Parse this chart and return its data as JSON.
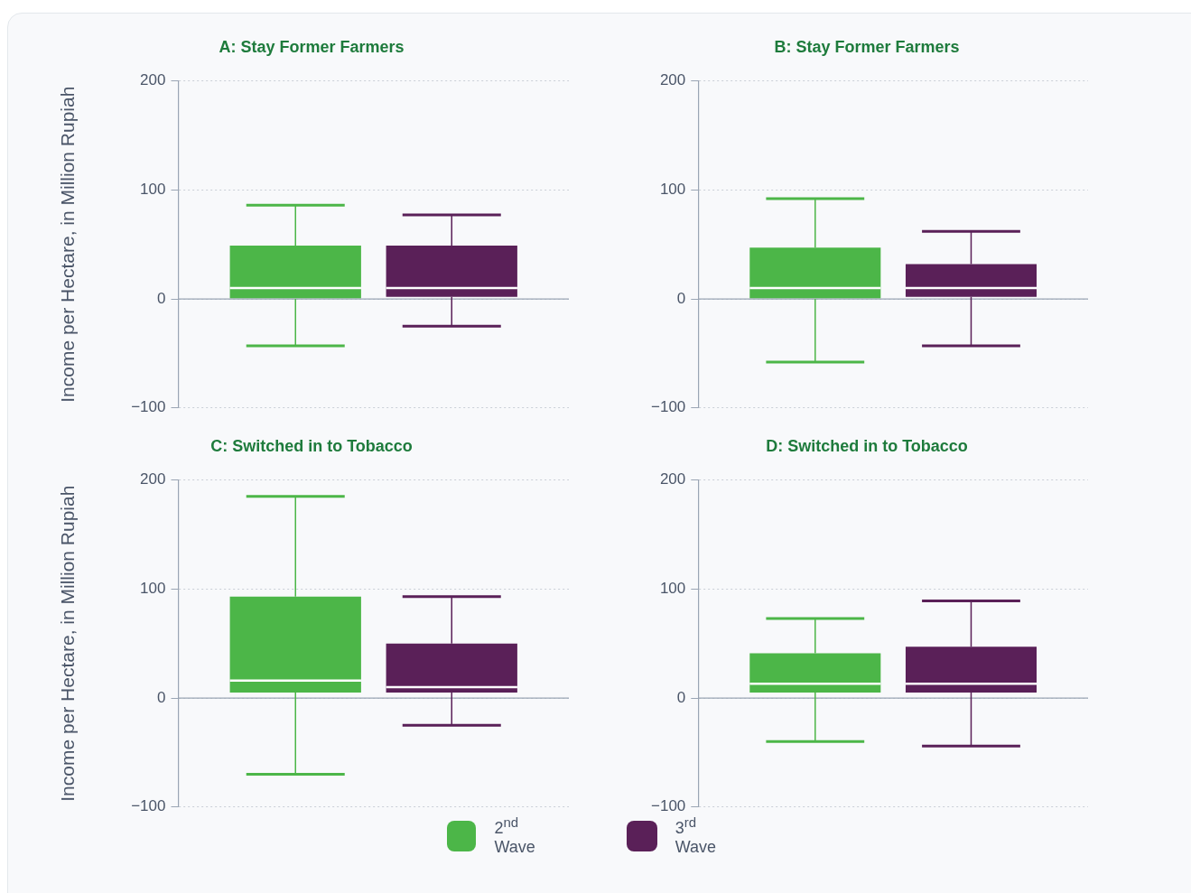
{
  "chart_data": [
    {
      "type": "box",
      "title": "A: Stay Former Farmers",
      "ylabel": "Income per Hectare, in Million Rupiah",
      "categories": [
        null
      ],
      "ylim": [
        -100,
        200
      ],
      "yticks": [
        -100,
        0,
        100,
        200
      ],
      "grid": "y",
      "tick_labels": "y",
      "legend": false,
      "series": [
        {
          "color": "#4cb648",
          "boxes": [
            {
              "low": -43,
              "q1": 0,
              "median": 10,
              "q3": 49,
              "high": 86
            }
          ]
        },
        {
          "color": "#5a2058",
          "boxes": [
            {
              "low": -25,
              "q1": 2,
              "median": 10,
              "q3": 49,
              "high": 77
            }
          ]
        }
      ]
    },
    {
      "type": "box",
      "title": "B: Stay Former Farmers",
      "categories": [
        null
      ],
      "ylim": [
        -100,
        200
      ],
      "yticks": [
        -100,
        0,
        100,
        200
      ],
      "grid": "y",
      "tick_labels": "y",
      "legend": false,
      "series": [
        {
          "color": "#4cb648",
          "boxes": [
            {
              "low": -58,
              "q1": 0,
              "median": 10,
              "q3": 47,
              "high": 92
            }
          ]
        },
        {
          "color": "#5a2058",
          "boxes": [
            {
              "low": -43,
              "q1": 2,
              "median": 10,
              "q3": 32,
              "high": 62
            }
          ]
        }
      ]
    },
    {
      "type": "box",
      "title": "C: Switched in to Tobacco",
      "ylabel": "Income per Hectare, in Million Rupiah",
      "categories": [
        null
      ],
      "ylim": [
        -100,
        200
      ],
      "yticks": [
        -100,
        0,
        100,
        200
      ],
      "grid": "y",
      "tick_labels": "y",
      "legend": "bottom",
      "series": [
        {
          "name": "2$^{nd}$ Wave",
          "color": "#4cb648",
          "boxes": [
            {
              "low": -70,
              "q1": 5,
              "median": 16,
              "q3": 93,
              "high": 185
            }
          ]
        },
        {
          "name": "3$^{rd}$ Wave",
          "color": "#5a2058",
          "boxes": [
            {
              "low": -25,
              "q1": 5,
              "median": 10,
              "q3": 50,
              "high": 93
            }
          ]
        }
      ]
    },
    {
      "type": "box",
      "title": "D: Switched in to Tobacco",
      "categories": [
        null
      ],
      "ylim": [
        -100,
        200
      ],
      "yticks": [
        -100,
        0,
        100,
        200
      ],
      "grid": "y",
      "tick_labels": "y",
      "legend": false,
      "series": [
        {
          "color": "#4cb648",
          "boxes": [
            {
              "low": -40,
              "q1": 5,
              "median": 13,
              "q3": 41,
              "high": 73
            }
          ]
        },
        {
          "color": "#5a2058",
          "boxes": [
            {
              "low": -44,
              "q1": 5,
              "median": 13,
              "q3": 47,
              "high": 89
            }
          ]
        }
      ]
    }
  ]
}
